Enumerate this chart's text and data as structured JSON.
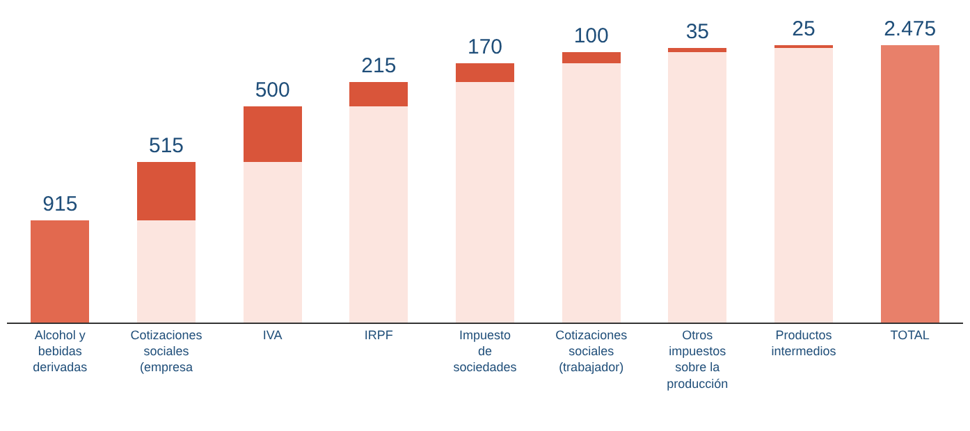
{
  "chart_data": {
    "type": "bar",
    "stacked": true,
    "categories": [
      "Alcohol y\nbebidas\nderivadas",
      "Cotizaciones\nsociales\n(empresa",
      "IVA",
      "IRPF",
      "Impuesto\nde\nsociedades",
      "Cotizaciones\nsociales\n(trabajador)",
      "Otros\nimpuestos\nsobre la\nproducción",
      "Productos\nintermedios",
      "TOTAL"
    ],
    "series": [
      {
        "color": "#fce5df",
        "values": [
          0,
          915,
          1430,
          1930,
          2145,
          2315,
          2415,
          2450,
          0
        ]
      },
      {
        "colors": [
          "#e2694f",
          "#d9553a",
          "#d9553a",
          "#d9553a",
          "#d9553a",
          "#d9553a",
          "#d9553a",
          "#d9553a",
          "#e8806a"
        ],
        "values": [
          915,
          515,
          500,
          215,
          170,
          100,
          35,
          25,
          2475
        ],
        "value_labels": [
          "915",
          "515",
          "500",
          "215",
          "170",
          "100",
          "35",
          "25",
          "2.475"
        ]
      }
    ]
  }
}
